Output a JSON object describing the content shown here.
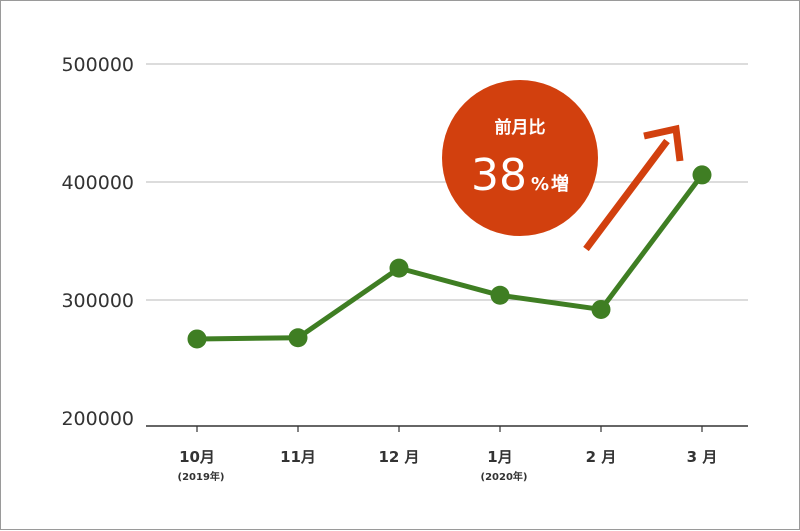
{
  "chart_data": {
    "type": "line",
    "categories": [
      "10月",
      "11月",
      "12 月",
      "1月",
      "2 月",
      "3 月"
    ],
    "category_sublabels": [
      "(2019年)",
      "",
      "",
      "(2020年)",
      "",
      ""
    ],
    "values": [
      267000,
      268000,
      327000,
      304000,
      292000,
      406000
    ],
    "ylim": [
      200000,
      500000
    ],
    "yticks": [
      "200000",
      "300000",
      "400000",
      "500000"
    ],
    "grid": true,
    "line_color": "#3f7e23",
    "annotation": {
      "title": "前月比",
      "value": "38",
      "suffix_percent": "%",
      "suffix_word": "増",
      "color": "#d2400e",
      "arrow_color": "#d2400e"
    }
  }
}
